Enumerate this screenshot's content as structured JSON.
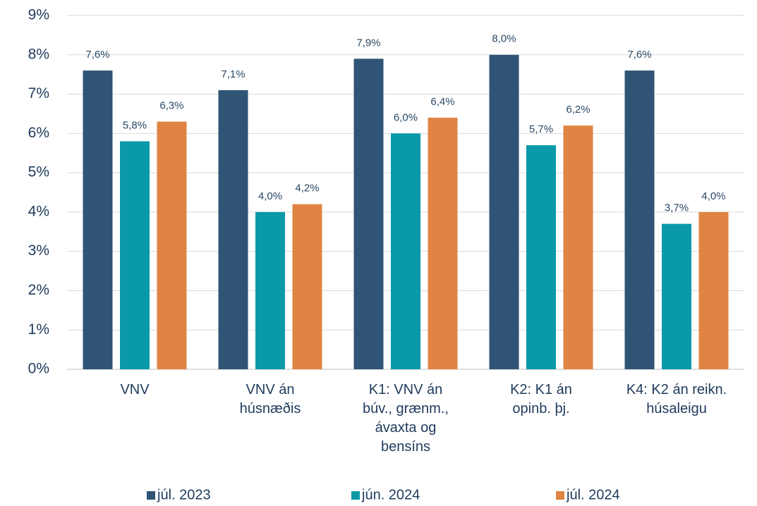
{
  "chart_data": {
    "type": "bar",
    "categories": [
      "VNV",
      "VNV án\nhúsnæðis",
      "K1: VNV án\nbúv., grænm.,\távaxta og\nbensíns",
      "K2: K1 án\nopinb. þj.",
      "K4: K2 án reikn.\nhúsaleigu"
    ],
    "series": [
      {
        "name": "júl. 2023",
        "color": "#2f5475",
        "values": [
          7.6,
          7.1,
          7.9,
          8.0,
          7.6
        ],
        "value_labels": [
          "7,6%",
          "7,1%",
          "7,9%",
          "8,0%",
          "7,6%"
        ]
      },
      {
        "name": "jún. 2024",
        "color": "#0a99a7",
        "values": [
          5.8,
          4.0,
          6.0,
          5.7,
          3.7
        ],
        "value_labels": [
          "5,8%",
          "4,0%",
          "6,0%",
          "5,7%",
          "3,7%"
        ]
      },
      {
        "name": "júl. 2024",
        "color": "#e08443",
        "values": [
          6.3,
          4.2,
          6.4,
          6.2,
          4.0
        ],
        "value_labels": [
          "6,3%",
          "4,2%",
          "6,4%",
          "6,2%",
          "4,0%"
        ]
      }
    ],
    "ylim": [
      0,
      9
    ],
    "yticks": [
      {
        "value": 0,
        "label": "0%"
      },
      {
        "value": 1,
        "label": "1%"
      },
      {
        "value": 2,
        "label": "2%"
      },
      {
        "value": 3,
        "label": "3%"
      },
      {
        "value": 4,
        "label": "4%"
      },
      {
        "value": 5,
        "label": "5%"
      },
      {
        "value": 6,
        "label": "6%"
      },
      {
        "value": 7,
        "label": "7%"
      },
      {
        "value": 8,
        "label": "8%"
      },
      {
        "value": 9,
        "label": "9%"
      }
    ],
    "grid": true,
    "legend": "bottom"
  }
}
